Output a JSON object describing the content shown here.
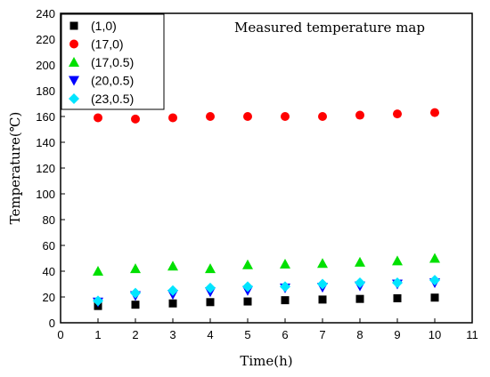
{
  "chart_data": {
    "type": "scatter",
    "title": "Measured temperature map",
    "xlabel": "Time(h)",
    "ylabel": "Temperature(℃)",
    "xlim": [
      0,
      11
    ],
    "ylim": [
      0,
      240
    ],
    "xticks": [
      "0",
      "1",
      "2",
      "3",
      "4",
      "5",
      "6",
      "7",
      "8",
      "9",
      "10",
      "11"
    ],
    "yticks": [
      "0",
      "20",
      "40",
      "60",
      "80",
      "100",
      "120",
      "140",
      "160",
      "180",
      "200",
      "220",
      "240"
    ],
    "grid": false,
    "legend_position": "top-left",
    "x": [
      1,
      2,
      3,
      4,
      5,
      6,
      7,
      8,
      9,
      10
    ],
    "series": [
      {
        "name": "(1,0)",
        "marker": "square",
        "color": "#000000",
        "values": [
          13,
          14,
          15,
          16,
          16.5,
          17.5,
          18,
          18.5,
          19,
          19.5
        ]
      },
      {
        "name": "(17,0)",
        "marker": "circle",
        "color": "#ff0000",
        "values": [
          159,
          158,
          159,
          160,
          160,
          160,
          160,
          161,
          162,
          163
        ]
      },
      {
        "name": "(17,0.5)",
        "marker": "triangle-up",
        "color": "#00e000",
        "values": [
          40,
          42,
          44,
          42,
          45,
          45.5,
          46,
          47,
          48,
          50
        ]
      },
      {
        "name": "(20,0.5)",
        "marker": "triangle-down",
        "color": "#0000ff",
        "values": [
          16,
          21,
          22,
          24,
          25,
          27,
          27.5,
          28.5,
          30,
          31
        ]
      },
      {
        "name": "(23,0.5)",
        "marker": "diamond",
        "color": "#00e5ff",
        "values": [
          17,
          23,
          25,
          27,
          28,
          28,
          30,
          31,
          31,
          33
        ]
      }
    ]
  }
}
